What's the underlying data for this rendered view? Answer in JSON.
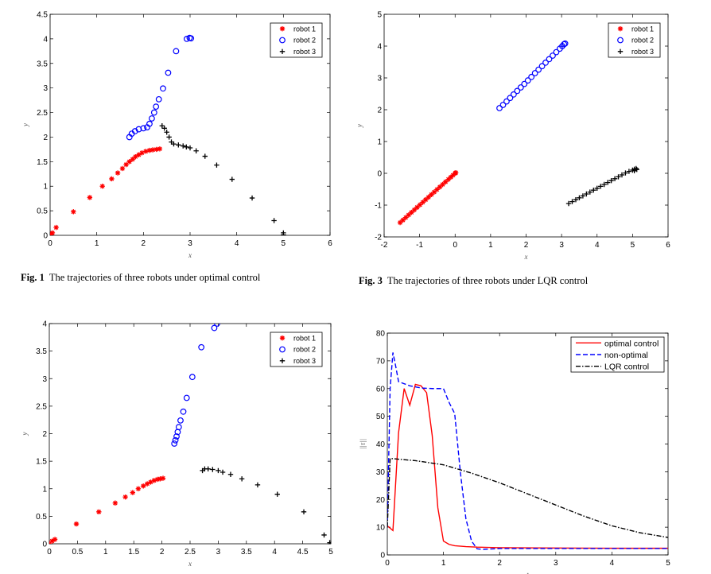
{
  "captions": [
    {
      "label": "Fig. 1",
      "text": "The trajectories of three robots under optimal control"
    },
    {
      "label": "Fig. 3",
      "text": "The trajectories of three robots under LQR control"
    }
  ],
  "chart_data": [
    {
      "type": "scatter",
      "xlabel": "x",
      "ylabel": "y",
      "xlim": [
        0,
        6
      ],
      "ylim": [
        0,
        4.5
      ],
      "xticks": [
        0,
        1,
        2,
        3,
        4,
        5,
        6
      ],
      "yticks": [
        0,
        0.5,
        1,
        1.5,
        2,
        2.5,
        3,
        3.5,
        4,
        4.5
      ],
      "legend": "top-right",
      "series": [
        {
          "name": "robot 1",
          "marker": "asterisk",
          "color": "#ff0000",
          "points": [
            [
              0,
              0
            ],
            [
              0.02,
              0.02
            ],
            [
              0.05,
              0.05
            ],
            [
              0.13,
              0.16
            ],
            [
              0.5,
              0.48
            ],
            [
              0.85,
              0.77
            ],
            [
              1.12,
              1.0
            ],
            [
              1.32,
              1.15
            ],
            [
              1.45,
              1.27
            ],
            [
              1.55,
              1.36
            ],
            [
              1.63,
              1.44
            ],
            [
              1.7,
              1.5
            ],
            [
              1.77,
              1.55
            ],
            [
              1.83,
              1.6
            ],
            [
              1.9,
              1.64
            ],
            [
              1.97,
              1.68
            ],
            [
              2.05,
              1.71
            ],
            [
              2.13,
              1.73
            ],
            [
              2.2,
              1.74
            ],
            [
              2.28,
              1.75
            ],
            [
              2.35,
              1.76
            ]
          ]
        },
        {
          "name": "robot 2",
          "marker": "circle",
          "color": "#0000ff",
          "points": [
            [
              1.7,
              2.0
            ],
            [
              1.75,
              2.07
            ],
            [
              1.82,
              2.12
            ],
            [
              1.9,
              2.16
            ],
            [
              2.0,
              2.18
            ],
            [
              2.08,
              2.2
            ],
            [
              2.13,
              2.27
            ],
            [
              2.18,
              2.38
            ],
            [
              2.23,
              2.5
            ],
            [
              2.27,
              2.62
            ],
            [
              2.33,
              2.77
            ],
            [
              2.42,
              2.99
            ],
            [
              2.53,
              3.31
            ],
            [
              2.7,
              3.75
            ],
            [
              2.93,
              4.0
            ],
            [
              2.99,
              4.02
            ],
            [
              3.02,
              4.01
            ]
          ]
        },
        {
          "name": "robot 3",
          "marker": "plus",
          "color": "#000000",
          "points": [
            [
              2.4,
              2.23
            ],
            [
              2.45,
              2.18
            ],
            [
              2.5,
              2.1
            ],
            [
              2.55,
              2.0
            ],
            [
              2.6,
              1.9
            ],
            [
              2.65,
              1.86
            ],
            [
              2.75,
              1.84
            ],
            [
              2.85,
              1.82
            ],
            [
              2.92,
              1.8
            ],
            [
              3.0,
              1.78
            ],
            [
              3.13,
              1.72
            ],
            [
              3.32,
              1.61
            ],
            [
              3.57,
              1.43
            ],
            [
              3.9,
              1.14
            ],
            [
              4.33,
              0.76
            ],
            [
              4.8,
              0.3
            ],
            [
              5.0,
              0.05
            ],
            [
              5.0,
              0.01
            ]
          ]
        }
      ]
    },
    {
      "type": "scatter",
      "xlabel": "x",
      "ylabel": "y",
      "xlim": [
        -2,
        6
      ],
      "ylim": [
        -2,
        5
      ],
      "xticks": [
        -2,
        -1,
        0,
        1,
        2,
        3,
        4,
        5,
        6
      ],
      "yticks": [
        -2,
        -1,
        0,
        1,
        2,
        3,
        4,
        5
      ],
      "legend": "top-right",
      "series": [
        {
          "name": "robot 1",
          "marker": "asterisk",
          "color": "#ff0000",
          "points": [
            [
              -1.55,
              -1.55
            ],
            [
              -1.47,
              -1.47
            ],
            [
              -1.39,
              -1.39
            ],
            [
              -1.31,
              -1.31
            ],
            [
              -1.23,
              -1.23
            ],
            [
              -1.15,
              -1.15
            ],
            [
              -1.07,
              -1.07
            ],
            [
              -0.99,
              -0.99
            ],
            [
              -0.91,
              -0.91
            ],
            [
              -0.83,
              -0.83
            ],
            [
              -0.75,
              -0.75
            ],
            [
              -0.67,
              -0.67
            ],
            [
              -0.59,
              -0.59
            ],
            [
              -0.51,
              -0.51
            ],
            [
              -0.43,
              -0.43
            ],
            [
              -0.35,
              -0.35
            ],
            [
              -0.27,
              -0.27
            ],
            [
              -0.19,
              -0.19
            ],
            [
              -0.12,
              -0.12
            ],
            [
              -0.06,
              -0.06
            ],
            [
              0,
              0
            ],
            [
              0.02,
              0.02
            ]
          ]
        },
        {
          "name": "robot 2",
          "marker": "circle",
          "color": "#0000ff",
          "points": [
            [
              1.25,
              2.05
            ],
            [
              1.35,
              2.15
            ],
            [
              1.45,
              2.26
            ],
            [
              1.55,
              2.37
            ],
            [
              1.65,
              2.48
            ],
            [
              1.75,
              2.59
            ],
            [
              1.85,
              2.7
            ],
            [
              1.95,
              2.81
            ],
            [
              2.05,
              2.92
            ],
            [
              2.15,
              3.03
            ],
            [
              2.25,
              3.15
            ],
            [
              2.35,
              3.26
            ],
            [
              2.45,
              3.37
            ],
            [
              2.55,
              3.48
            ],
            [
              2.65,
              3.59
            ],
            [
              2.75,
              3.7
            ],
            [
              2.85,
              3.81
            ],
            [
              2.95,
              3.92
            ],
            [
              3.02,
              4.0
            ],
            [
              3.07,
              4.06
            ],
            [
              3.1,
              4.08
            ]
          ]
        },
        {
          "name": "robot 3",
          "marker": "plus",
          "color": "#000000",
          "points": [
            [
              3.2,
              -0.95
            ],
            [
              3.3,
              -0.89
            ],
            [
              3.4,
              -0.83
            ],
            [
              3.5,
              -0.77
            ],
            [
              3.6,
              -0.71
            ],
            [
              3.7,
              -0.65
            ],
            [
              3.8,
              -0.59
            ],
            [
              3.9,
              -0.53
            ],
            [
              4.0,
              -0.47
            ],
            [
              4.1,
              -0.41
            ],
            [
              4.2,
              -0.35
            ],
            [
              4.3,
              -0.29
            ],
            [
              4.4,
              -0.23
            ],
            [
              4.5,
              -0.17
            ],
            [
              4.6,
              -0.11
            ],
            [
              4.7,
              -0.05
            ],
            [
              4.8,
              0.01
            ],
            [
              4.9,
              0.06
            ],
            [
              5.0,
              0.1
            ],
            [
              5.05,
              0.13
            ],
            [
              5.1,
              0.15
            ],
            [
              5.12,
              0.12
            ],
            [
              5.05,
              0.08
            ]
          ]
        }
      ]
    },
    {
      "type": "scatter",
      "xlabel": "x",
      "ylabel": "y",
      "xlim": [
        0,
        5
      ],
      "ylim": [
        0,
        4
      ],
      "xticks": [
        0,
        0.5,
        1,
        1.5,
        2,
        2.5,
        3,
        3.5,
        4,
        4.5,
        5
      ],
      "yticks": [
        0,
        0.5,
        1,
        1.5,
        2,
        2.5,
        3,
        3.5,
        4
      ],
      "legend": "top-right",
      "series": [
        {
          "name": "robot 1",
          "marker": "asterisk",
          "color": "#ff0000",
          "points": [
            [
              0,
              0
            ],
            [
              0.05,
              0.05
            ],
            [
              0.1,
              0.08
            ],
            [
              0.48,
              0.36
            ],
            [
              0.88,
              0.58
            ],
            [
              1.17,
              0.74
            ],
            [
              1.35,
              0.85
            ],
            [
              1.48,
              0.93
            ],
            [
              1.58,
              1.0
            ],
            [
              1.67,
              1.05
            ],
            [
              1.74,
              1.09
            ],
            [
              1.8,
              1.12
            ],
            [
              1.86,
              1.15
            ],
            [
              1.92,
              1.17
            ],
            [
              1.97,
              1.18
            ],
            [
              2.02,
              1.19
            ]
          ]
        },
        {
          "name": "robot 2",
          "marker": "circle",
          "color": "#0000ff",
          "points": [
            [
              2.22,
              1.82
            ],
            [
              2.24,
              1.88
            ],
            [
              2.26,
              1.95
            ],
            [
              2.28,
              2.03
            ],
            [
              2.3,
              2.12
            ],
            [
              2.33,
              2.24
            ],
            [
              2.38,
              2.4
            ],
            [
              2.44,
              2.65
            ],
            [
              2.54,
              3.03
            ],
            [
              2.7,
              3.57
            ],
            [
              2.93,
              3.92
            ],
            [
              2.98,
              4.0
            ]
          ]
        },
        {
          "name": "robot 3",
          "marker": "plus",
          "color": "#000000",
          "points": [
            [
              2.72,
              1.33
            ],
            [
              2.76,
              1.36
            ],
            [
              2.82,
              1.36
            ],
            [
              2.9,
              1.35
            ],
            [
              3.0,
              1.33
            ],
            [
              3.08,
              1.3
            ],
            [
              3.22,
              1.26
            ],
            [
              3.42,
              1.18
            ],
            [
              3.7,
              1.07
            ],
            [
              4.05,
              0.9
            ],
            [
              4.52,
              0.58
            ],
            [
              4.88,
              0.16
            ],
            [
              4.98,
              0.02
            ]
          ]
        }
      ]
    },
    {
      "type": "line",
      "xlabel": "t",
      "ylabel": "||τ||",
      "xlim": [
        0,
        5
      ],
      "ylim": [
        0,
        80
      ],
      "xticks": [
        0,
        1,
        2,
        3,
        4,
        5
      ],
      "yticks": [
        0,
        10,
        20,
        30,
        40,
        50,
        60,
        70,
        80
      ],
      "legend": "top-right",
      "series": [
        {
          "name": "optimal control",
          "style": "solid",
          "color": "#ff0000",
          "x": [
            0,
            0.1,
            0.2,
            0.3,
            0.4,
            0.5,
            0.6,
            0.7,
            0.8,
            0.9,
            1.0,
            1.1,
            1.2,
            1.4,
            1.6,
            2,
            3,
            4,
            5
          ],
          "y": [
            10.5,
            8.8,
            44,
            60,
            54,
            61.5,
            61,
            58.5,
            43,
            17,
            5,
            3.8,
            3.3,
            3,
            2.8,
            2.6,
            2.5,
            2.4,
            2.4
          ]
        },
        {
          "name": "non-optimal",
          "style": "dashed",
          "color": "#0000ff",
          "x": [
            0,
            0.05,
            0.1,
            0.15,
            0.2,
            0.4,
            0.6,
            0.8,
            1.0,
            1.1,
            1.2,
            1.3,
            1.4,
            1.5,
            1.6,
            1.7,
            2,
            3,
            4,
            5
          ],
          "y": [
            10,
            60,
            73,
            68,
            62.5,
            61,
            60.2,
            60,
            60,
            55,
            51,
            30,
            13,
            5,
            2.2,
            2,
            2.3,
            2.3,
            2.3,
            2.3
          ]
        },
        {
          "name": "LQR control",
          "style": "dashdot",
          "color": "#000000",
          "x": [
            0,
            0.05,
            0.5,
            1,
            1.5,
            2,
            2.5,
            3,
            3.5,
            4,
            4.5,
            5
          ],
          "y": [
            10,
            34.8,
            34,
            32.5,
            29.5,
            26,
            22,
            18,
            14,
            10.5,
            8,
            6.3
          ]
        }
      ]
    }
  ]
}
